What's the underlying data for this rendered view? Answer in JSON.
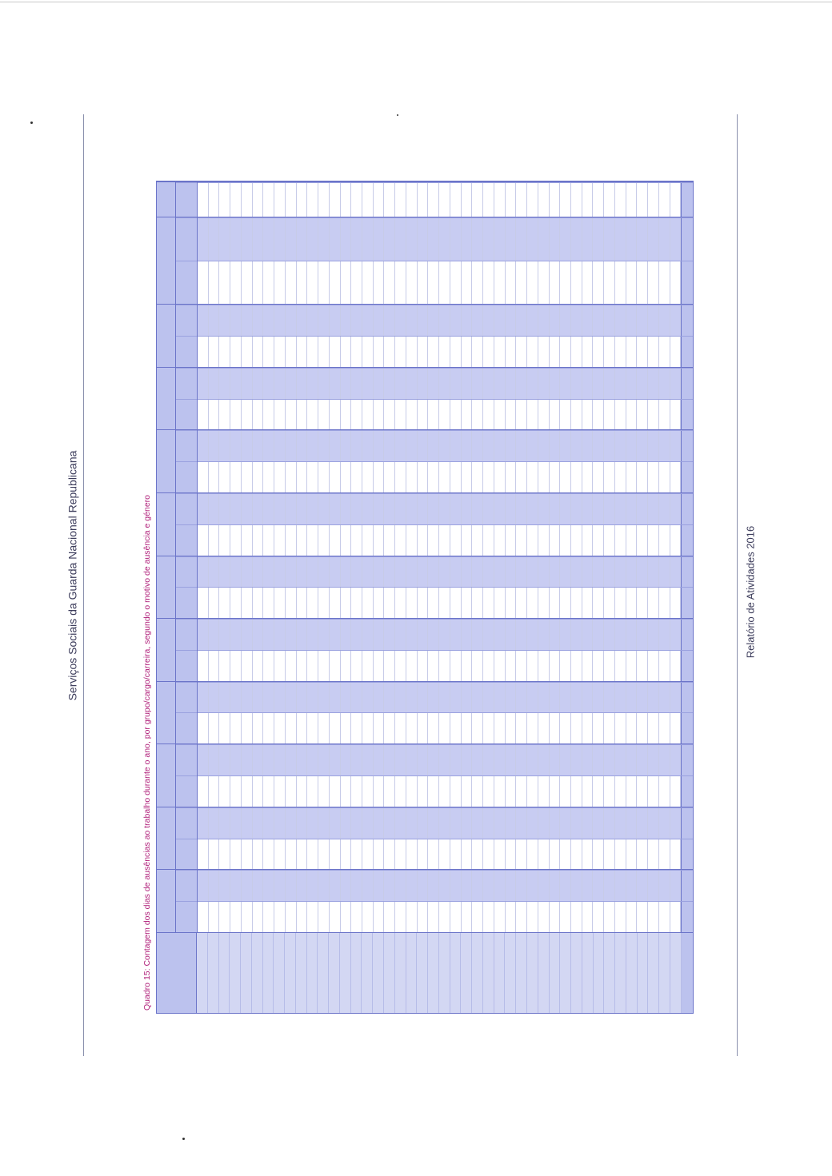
{
  "header": {
    "title": "Serviços Sociais da Guarda Nacional Republicana"
  },
  "footer": {
    "title": "Relatório de Atividades 2016"
  },
  "table": {
    "caption": "Quadro 15: Contagem dos dias de ausências ao trabalho durante o ano, por grupo/cargo/carreira, segundo o motivo de ausência e género"
  }
}
